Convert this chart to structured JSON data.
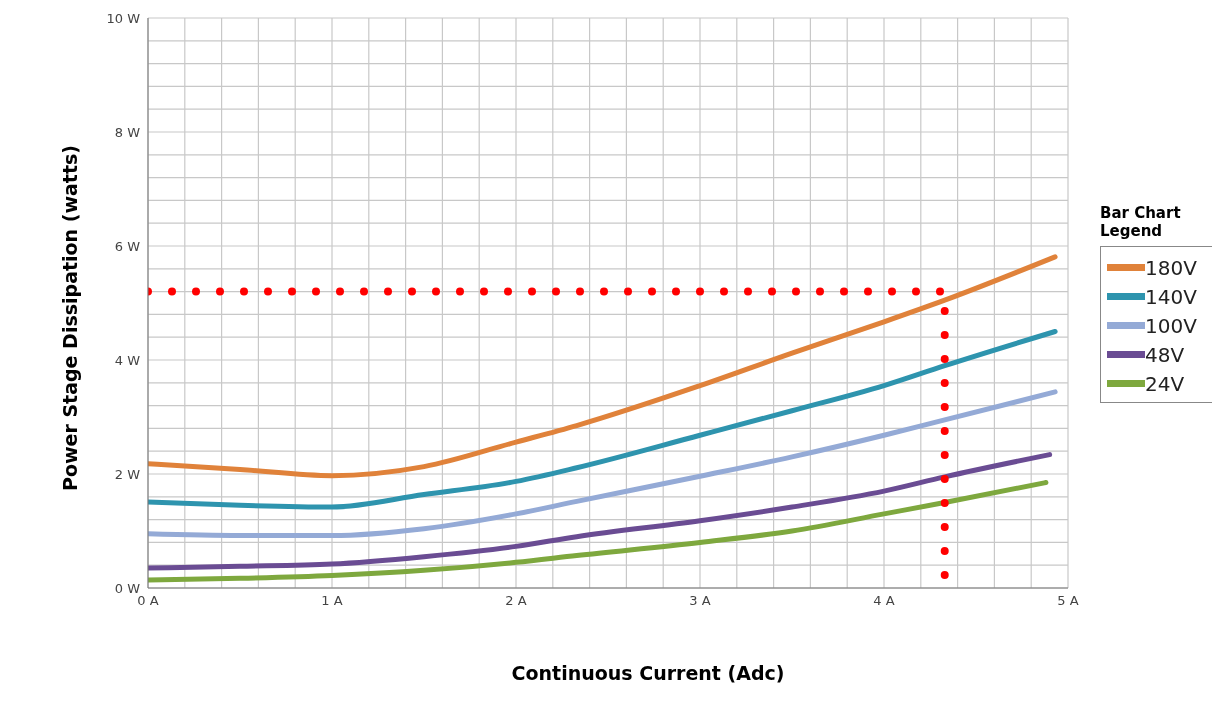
{
  "chart_data": {
    "type": "line",
    "xlabel": "Continuous Current (Adc)",
    "ylabel": "Power Stage Dissipation (watts)",
    "legend_title": "Bar Chart Legend",
    "xlim": [
      0,
      5
    ],
    "ylim": [
      0,
      10
    ],
    "xticks": [
      {
        "value": 0,
        "label": "0 A"
      },
      {
        "value": 0.2,
        "label": null
      },
      {
        "value": 0.4,
        "label": null
      },
      {
        "value": 0.6,
        "label": null
      },
      {
        "value": 0.8,
        "label": null
      },
      {
        "value": 1,
        "label": "1 A"
      },
      {
        "value": 1.2,
        "label": null
      },
      {
        "value": 1.4,
        "label": null
      },
      {
        "value": 1.6,
        "label": null
      },
      {
        "value": 1.8,
        "label": null
      },
      {
        "value": 2,
        "label": "2 A"
      },
      {
        "value": 2.2,
        "label": null
      },
      {
        "value": 2.4,
        "label": null
      },
      {
        "value": 2.6,
        "label": null
      },
      {
        "value": 2.8,
        "label": null
      },
      {
        "value": 3,
        "label": "3 A"
      },
      {
        "value": 3.2,
        "label": null
      },
      {
        "value": 3.4,
        "label": null
      },
      {
        "value": 3.6,
        "label": null
      },
      {
        "value": 3.8,
        "label": null
      },
      {
        "value": 4,
        "label": "4 A"
      },
      {
        "value": 4.2,
        "label": null
      },
      {
        "value": 4.4,
        "label": null
      },
      {
        "value": 4.6,
        "label": null
      },
      {
        "value": 4.8,
        "label": null
      },
      {
        "value": 5,
        "label": "5 A"
      }
    ],
    "yticks": [
      {
        "value": 0,
        "label": "0 W"
      },
      {
        "value": 0.4,
        "label": null
      },
      {
        "value": 0.8,
        "label": null
      },
      {
        "value": 1.2,
        "label": null
      },
      {
        "value": 1.6,
        "label": null
      },
      {
        "value": 2,
        "label": "2 W"
      },
      {
        "value": 2.4,
        "label": null
      },
      {
        "value": 2.8,
        "label": null
      },
      {
        "value": 3.2,
        "label": null
      },
      {
        "value": 3.6,
        "label": null
      },
      {
        "value": 4,
        "label": "4 W"
      },
      {
        "value": 4.4,
        "label": null
      },
      {
        "value": 4.8,
        "label": null
      },
      {
        "value": 5.2,
        "label": null
      },
      {
        "value": 5.6,
        "label": null
      },
      {
        "value": 6,
        "label": "6 W"
      },
      {
        "value": 6.4,
        "label": null
      },
      {
        "value": 6.8,
        "label": null
      },
      {
        "value": 7.2,
        "label": null
      },
      {
        "value": 7.6,
        "label": null
      },
      {
        "value": 8,
        "label": "8 W"
      },
      {
        "value": 8.4,
        "label": null
      },
      {
        "value": 8.8,
        "label": null
      },
      {
        "value": 9.2,
        "label": null
      },
      {
        "value": 9.6,
        "label": null
      },
      {
        "value": 10,
        "label": "10 W"
      }
    ],
    "grid": true,
    "legend": "right",
    "marker": "none",
    "line_style": "solid",
    "series": [
      {
        "name": "180V",
        "color": "#e0823a",
        "x": [
          0,
          0.5,
          1,
          1.5,
          2,
          2.33,
          3,
          3.5,
          4,
          4.33,
          4.93
        ],
        "values": [
          2.18,
          2.08,
          1.97,
          2.13,
          2.56,
          2.85,
          3.55,
          4.12,
          4.67,
          5.05,
          5.81
        ]
      },
      {
        "name": "140V",
        "color": "#2e94ae",
        "x": [
          0,
          0.5,
          1,
          1.5,
          2,
          2.33,
          3,
          3.5,
          4,
          4.33,
          4.93
        ],
        "values": [
          1.51,
          1.45,
          1.42,
          1.64,
          1.87,
          2.11,
          2.68,
          3.11,
          3.55,
          3.9,
          4.5
        ]
      },
      {
        "name": "100V",
        "color": "#94aad6",
        "x": [
          0,
          0.5,
          1,
          1.5,
          2,
          2.33,
          3,
          3.5,
          4,
          4.33,
          4.93
        ],
        "values": [
          0.95,
          0.92,
          0.92,
          1.04,
          1.3,
          1.52,
          1.96,
          2.3,
          2.68,
          2.95,
          3.44
        ]
      },
      {
        "name": "48V",
        "color": "#6a4c93",
        "x": [
          0,
          0.5,
          1,
          1.5,
          2,
          2.33,
          3,
          3.5,
          4,
          4.33,
          4.9
        ],
        "values": [
          0.35,
          0.38,
          0.42,
          0.55,
          0.73,
          0.9,
          1.18,
          1.42,
          1.7,
          1.95,
          2.34
        ]
      },
      {
        "name": "24V",
        "color": "#7ea83e",
        "x": [
          0,
          0.5,
          1,
          1.5,
          2,
          2.33,
          3,
          3.5,
          4,
          4.33,
          4.88
        ],
        "values": [
          0.14,
          0.17,
          0.22,
          0.31,
          0.45,
          0.57,
          0.8,
          1.0,
          1.3,
          1.5,
          1.85
        ]
      },
      {
        "color": "#ff0000",
        "line_style": "dotted",
        "x": [
          0,
          4.33,
          4.33
        ],
        "values": [
          5.2,
          5.2,
          0
        ]
      }
    ]
  }
}
